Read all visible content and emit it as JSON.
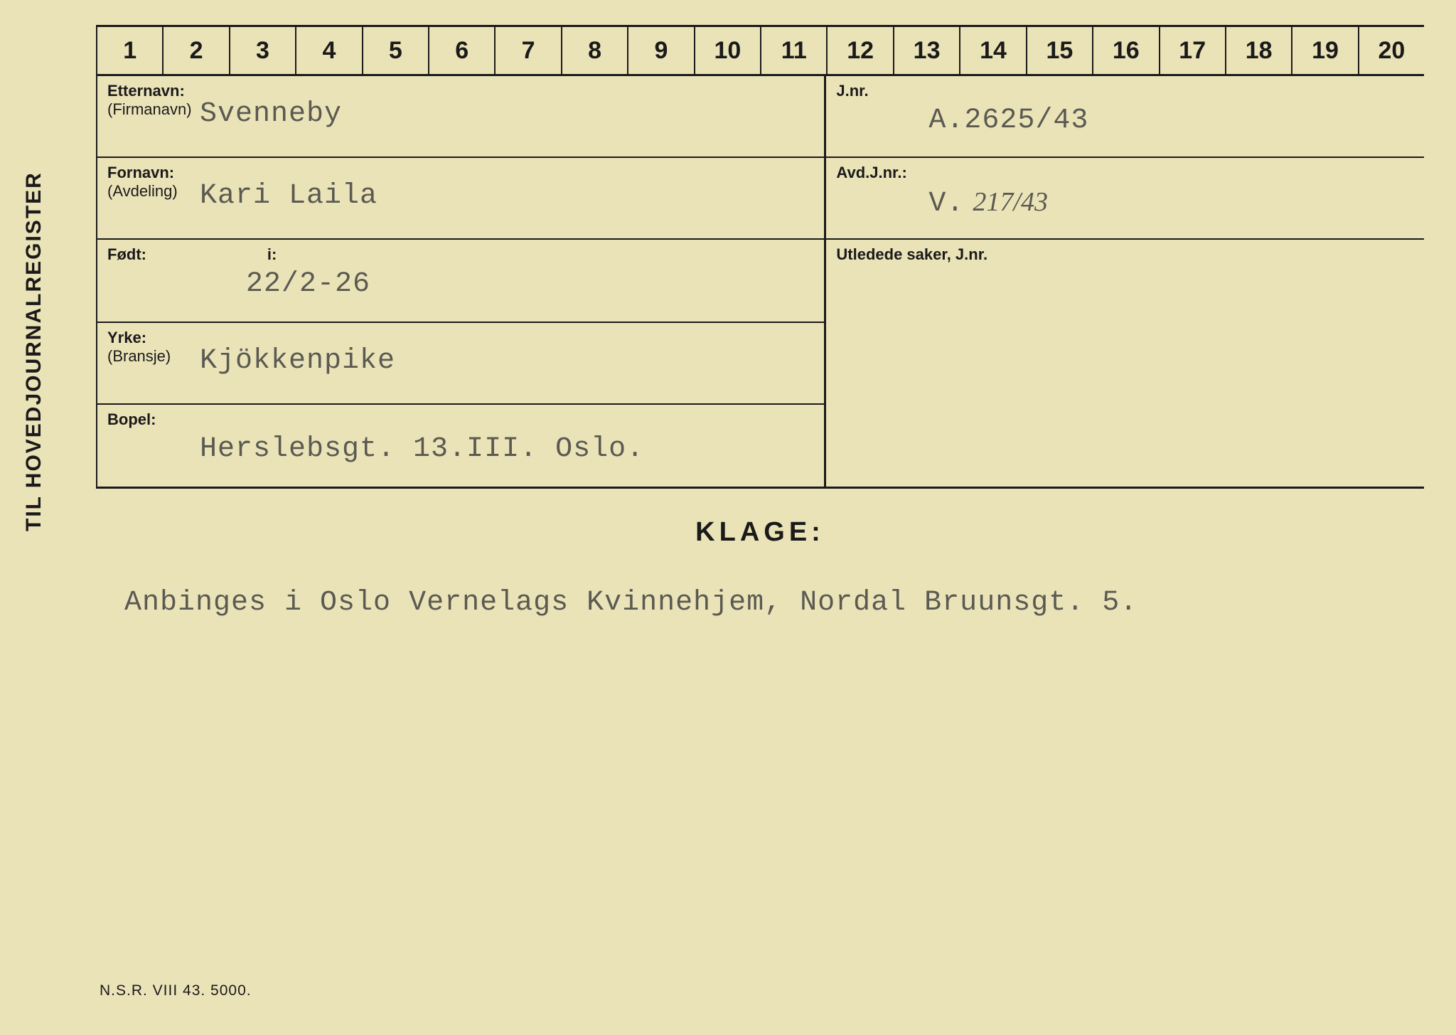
{
  "sidebar_title": "TIL HOVEDJOURNALREGISTER",
  "ruler_numbers": [
    "1",
    "2",
    "3",
    "4",
    "5",
    "6",
    "7",
    "8",
    "9",
    "10",
    "11",
    "12",
    "13",
    "14",
    "15",
    "16",
    "17",
    "18",
    "19",
    "20"
  ],
  "fields": {
    "etternavn": {
      "label": "Etternavn:",
      "sublabel": "(Firmanavn)",
      "value": "Svenneby"
    },
    "fornavn": {
      "label": "Fornavn:",
      "sublabel": "(Avdeling)",
      "value": "Kari Laila"
    },
    "fodt": {
      "label": "Født:",
      "i_label": "i:",
      "value": "22/2-26"
    },
    "yrke": {
      "label": "Yrke:",
      "sublabel": "(Bransje)",
      "value": "Kjökkenpike"
    },
    "bopel": {
      "label": "Bopel:",
      "value": "Herslebsgt. 13.III.  Oslo."
    },
    "jnr": {
      "label": "J.nr.",
      "value": "A.2625/43"
    },
    "avdjnr": {
      "label": "Avd.J.nr.:",
      "value_prefix": "V.",
      "value_hand": "217/43"
    },
    "utledede": {
      "label": "Utledede saker, J.nr."
    }
  },
  "klage": {
    "heading": "KLAGE:",
    "body": "Anbinges i Oslo Vernelags Kvinnehjem, Nordal Bruunsgt. 5."
  },
  "footer_code": "N.S.R. VIII 43. 5000."
}
